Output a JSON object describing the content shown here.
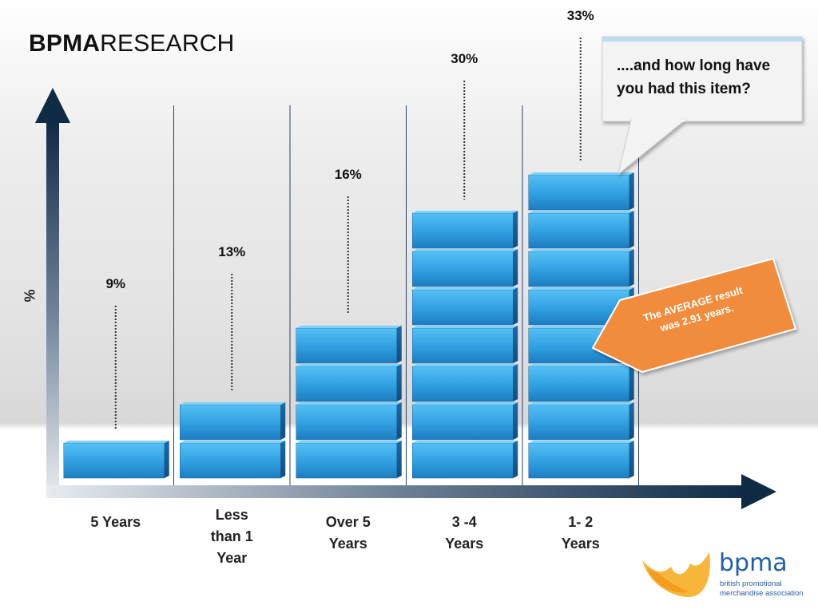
{
  "header": {
    "title_bold": "BPMA",
    "title_rest": "RESEARCH"
  },
  "chart_data": {
    "type": "bar",
    "categories": [
      "5 Years",
      "Less than 1 Year",
      "Over 5 Years",
      "3 -4 Years",
      "1- 2 Years"
    ],
    "category_lines": [
      [
        "5 Years"
      ],
      [
        "Less",
        "than 1",
        "Year"
      ],
      [
        "Over 5",
        "Years"
      ],
      [
        "3 -4",
        "Years"
      ],
      [
        "1- 2",
        "Years"
      ]
    ],
    "values": [
      9,
      13,
      16,
      30,
      33
    ],
    "value_labels": [
      "9%",
      "13%",
      "16%",
      "30%",
      "33%"
    ],
    "stack_counts": [
      1,
      2,
      4,
      7,
      8
    ],
    "ylabel": "%",
    "xlabel": "",
    "grid": "vertical separators",
    "colors": {
      "bar": "#3aa6e6",
      "bar_dark": "#1f78b4",
      "axis": "#0f2a45",
      "callout_orange": "#f28c3c"
    }
  },
  "callout": {
    "text": "....and how long have you had this item?"
  },
  "average_note": {
    "line1": "The AVERAGE result",
    "line2": "was 2.91 years."
  },
  "logo": {
    "name": "bpma",
    "subtitle_line1": "british promotional",
    "subtitle_line2": "merchandise association"
  }
}
